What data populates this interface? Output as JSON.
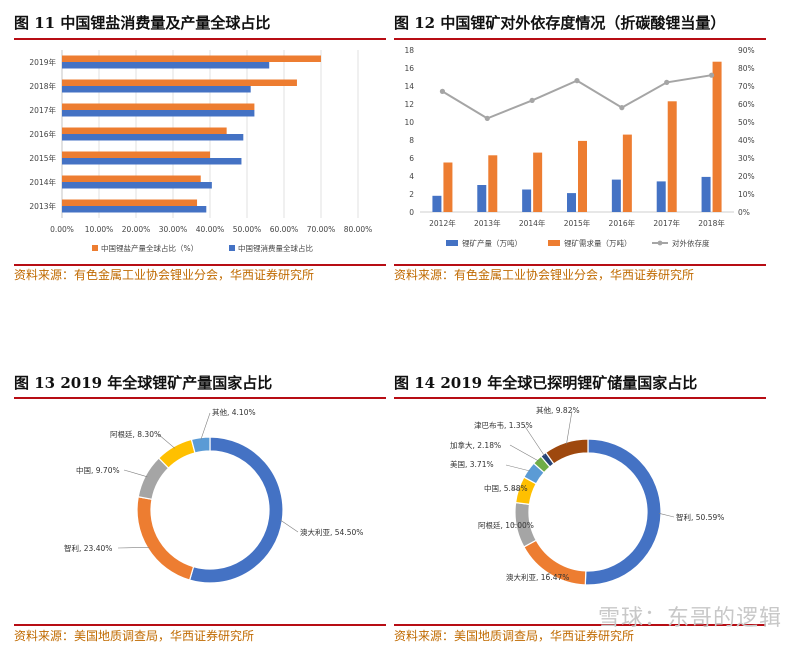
{
  "panels": {
    "p11": {
      "title": "图 11  中国锂盐消费量及产量全球占比",
      "source": "资料来源：有色金属工业协会锂业分会，华西证券研究所"
    },
    "p12": {
      "title": "图 12 中国锂矿对外依存度情况（折碳酸锂当量）",
      "source": "资料来源：有色金属工业协会锂业分会，华西证券研究所"
    },
    "p13": {
      "title": "图 13  2019 年全球锂矿产量国家占比",
      "source": "资料来源：美国地质调查局，华西证券研究所"
    },
    "p14": {
      "title": "图 14  2019 年全球已探明锂矿储量国家占比",
      "source": "资料来源：美国地质调查局，华西证券研究所"
    }
  },
  "watermark": "雪球：东哥的逻辑",
  "colors": {
    "blue": "#4472c4",
    "orange": "#ed7d31",
    "gray": "#a5a5a5",
    "yellow": "#ffc000",
    "lightblue": "#5b9bd5",
    "green": "#70ad47",
    "navy": "#264478",
    "brown": "#9e480e",
    "rule": "#b70d14"
  },
  "chart_data": [
    {
      "id": "fig11",
      "type": "bar",
      "orientation": "horizontal",
      "categories": [
        "2013年",
        "2014年",
        "2015年",
        "2016年",
        "2017年",
        "2018年",
        "2019年"
      ],
      "series": [
        {
          "name": "中国锂盐产量全球占比（%）",
          "color": "#ed7d31",
          "values": [
            0.365,
            0.375,
            0.4,
            0.445,
            0.52,
            0.635,
            0.7
          ]
        },
        {
          "name": "中国锂消费量全球占比",
          "color": "#4472c4",
          "values": [
            0.39,
            0.405,
            0.485,
            0.49,
            0.52,
            0.51,
            0.56
          ]
        }
      ],
      "xlim": [
        0,
        0.8
      ],
      "xticks": [
        "0.00%",
        "10.00%",
        "20.00%",
        "30.00%",
        "40.00%",
        "50.00%",
        "60.00%",
        "70.00%",
        "80.00%"
      ],
      "legend": "bottom",
      "grid": true
    },
    {
      "id": "fig12",
      "type": "bar+line",
      "categories": [
        "2012年",
        "2013年",
        "2014年",
        "2015年",
        "2016年",
        "2017年",
        "2018年"
      ],
      "series": [
        {
          "name": "锂矿产量（万吨）",
          "color": "#4472c4",
          "axis": "left",
          "kind": "bar",
          "values": [
            1.8,
            3.0,
            2.5,
            2.1,
            3.6,
            3.4,
            3.9
          ]
        },
        {
          "name": "锂矿需求量（万吨）",
          "color": "#ed7d31",
          "axis": "left",
          "kind": "bar",
          "values": [
            5.5,
            6.3,
            6.6,
            7.9,
            8.6,
            12.3,
            16.7
          ]
        },
        {
          "name": "对外依存度",
          "color": "#a5a5a5",
          "axis": "right",
          "kind": "line",
          "values": [
            0.67,
            0.52,
            0.62,
            0.73,
            0.58,
            0.72,
            0.76
          ]
        }
      ],
      "ylim_left": [
        0,
        18
      ],
      "yticks_left": [
        "0",
        "2",
        "4",
        "6",
        "8",
        "10",
        "12",
        "14",
        "16",
        "18"
      ],
      "ylim_right": [
        0,
        0.9
      ],
      "yticks_right": [
        "0%",
        "10%",
        "20%",
        "30%",
        "40%",
        "50%",
        "60%",
        "70%",
        "80%",
        "90%"
      ],
      "legend": "bottom"
    },
    {
      "id": "fig13",
      "type": "pie",
      "donut": true,
      "slices": [
        {
          "label": "澳大利亚",
          "text": "澳大利亚, 54.50%",
          "value": 54.5,
          "color": "#4472c4"
        },
        {
          "label": "智利",
          "text": "智利, 23.40%",
          "value": 23.4,
          "color": "#ed7d31"
        },
        {
          "label": "中国",
          "text": "中国, 9.70%",
          "value": 9.7,
          "color": "#a5a5a5"
        },
        {
          "label": "阿根廷",
          "text": "阿根廷, 8.30%",
          "value": 8.3,
          "color": "#ffc000"
        },
        {
          "label": "其他",
          "text": "其他, 4.10%",
          "value": 4.1,
          "color": "#5b9bd5"
        }
      ]
    },
    {
      "id": "fig14",
      "type": "pie",
      "donut": true,
      "slices": [
        {
          "label": "智利",
          "text": "智利, 50.59%",
          "value": 50.59,
          "color": "#4472c4"
        },
        {
          "label": "澳大利亚",
          "text": "澳大利亚, 16.47%",
          "value": 16.47,
          "color": "#ed7d31"
        },
        {
          "label": "阿根廷",
          "text": "阿根廷, 10.00%",
          "value": 10.0,
          "color": "#a5a5a5"
        },
        {
          "label": "中国",
          "text": "中国, 5.88%",
          "value": 5.88,
          "color": "#ffc000"
        },
        {
          "label": "美国",
          "text": "美国, 3.71%",
          "value": 3.71,
          "color": "#5b9bd5"
        },
        {
          "label": "加拿大",
          "text": "加拿大, 2.18%",
          "value": 2.18,
          "color": "#70ad47"
        },
        {
          "label": "津巴布韦",
          "text": "津巴布韦, 1.35%",
          "value": 1.35,
          "color": "#264478"
        },
        {
          "label": "其他",
          "text": "其他, 9.82%",
          "value": 9.82,
          "color": "#9e480e"
        }
      ]
    }
  ]
}
